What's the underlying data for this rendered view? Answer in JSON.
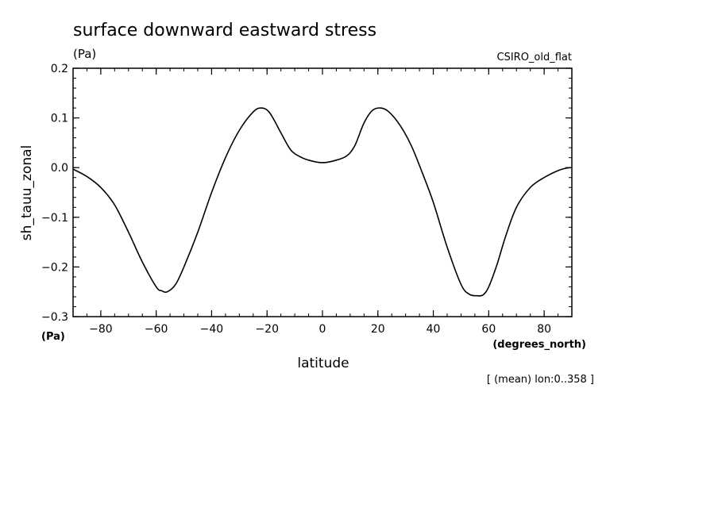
{
  "chart_data": {
    "type": "line",
    "title": "surface downward eastward stress",
    "units": "(Pa)",
    "model": "CSIRO_old_flat",
    "ylabel": "sh_tauu_zonal",
    "yunits": "(Pa)",
    "xlabel": "latitude",
    "xunits": "(degrees_north)",
    "note": "[ (mean) lon:0..358 ]",
    "xlim": [
      -90,
      90
    ],
    "ylim": [
      -0.3,
      0.2
    ],
    "xticks": [
      -80,
      -60,
      -40,
      -20,
      0,
      20,
      40,
      60,
      80
    ],
    "xtick_labels": [
      "−80",
      "−60",
      "−40",
      "−20",
      "0",
      "20",
      "40",
      "60",
      "80"
    ],
    "yticks": [
      -0.3,
      -0.2,
      -0.1,
      0.0,
      0.1,
      0.2
    ],
    "ytick_labels": [
      "−0.3",
      "−0.2",
      "−0.1",
      "0.0",
      "0.1",
      "0.2"
    ],
    "series": [
      {
        "x": [
          -90,
          -85,
          -80,
          -75,
          -70,
          -65,
          -60,
          -58,
          -56,
          -53,
          -50,
          -45,
          -40,
          -35,
          -30,
          -25,
          -22,
          -19,
          -15,
          -12,
          -10,
          -7,
          -5,
          -2,
          0,
          2,
          5,
          8,
          10,
          12,
          15,
          18,
          21,
          24,
          28,
          32,
          36,
          40,
          45,
          50,
          53,
          56,
          58,
          60,
          63,
          66,
          70,
          75,
          80,
          85,
          88,
          90
        ],
        "y": [
          -0.003,
          -0.018,
          -0.04,
          -0.075,
          -0.13,
          -0.19,
          -0.24,
          -0.248,
          -0.25,
          -0.235,
          -0.2,
          -0.13,
          -0.05,
          0.02,
          0.075,
          0.112,
          0.12,
          0.11,
          0.07,
          0.04,
          0.028,
          0.019,
          0.015,
          0.011,
          0.01,
          0.011,
          0.015,
          0.021,
          0.03,
          0.048,
          0.09,
          0.115,
          0.12,
          0.112,
          0.085,
          0.045,
          -0.01,
          -0.07,
          -0.16,
          -0.235,
          -0.255,
          -0.258,
          -0.256,
          -0.24,
          -0.195,
          -0.14,
          -0.08,
          -0.04,
          -0.02,
          -0.006,
          -0.001,
          0.0
        ]
      }
    ],
    "grid": false,
    "color": "#000000"
  }
}
